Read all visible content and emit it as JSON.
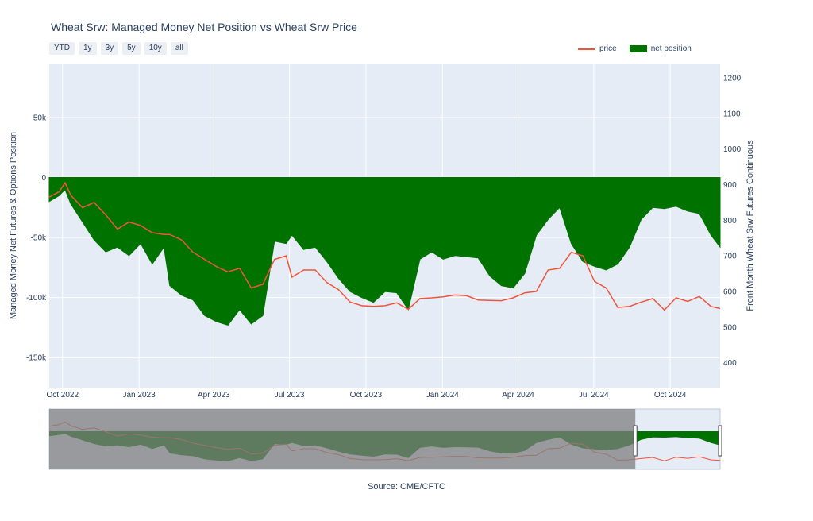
{
  "title": "Wheat Srw: Managed Money Net Position vs Wheat Srw Price",
  "range_buttons": [
    "YTD",
    "1y",
    "3y",
    "5y",
    "10y",
    "all"
  ],
  "legend": {
    "price": "price",
    "net_position": "net position"
  },
  "source": "Source: CME/CFTC",
  "colors": {
    "price": "#ef553b",
    "net_position": "#007200",
    "plot_bg": "#e5ecf6",
    "selector_shade": "#7f7f7f"
  },
  "chart_data": {
    "type": "area",
    "title": "Wheat Srw: Managed Money Net Position vs Wheat Srw Price",
    "x_axis": {
      "tick_labels": [
        "Oct 2022",
        "Jan 2023",
        "Apr 2023",
        "Jul 2023",
        "Oct 2023",
        "Jan 2024",
        "Apr 2024",
        "Jul 2024",
        "Oct 2024"
      ],
      "range": [
        "2022-09-15",
        "2024-11-30"
      ]
    },
    "y_left": {
      "label": "Managed Money Net Futures & Options Position",
      "ticks": [
        50000,
        0,
        -50000,
        -100000,
        -150000
      ],
      "tick_labels": [
        "50k",
        "0",
        "-50k",
        "-100k",
        "-150k"
      ],
      "range": [
        -175000,
        95000
      ]
    },
    "y_right": {
      "label": "Front Month Wheat Srw Futures Continuous",
      "ticks": [
        400,
        500,
        600,
        700,
        800,
        900,
        1000,
        1100,
        1200
      ],
      "tick_labels": [
        "400",
        "500",
        "600",
        "700",
        "800",
        "900",
        "1000",
        "1100",
        "1200"
      ],
      "range": [
        330,
        1240
      ]
    },
    "grid": true,
    "legend_position": "top-right",
    "series": [
      {
        "name": "net position",
        "style": "area",
        "axis": "left",
        "x": [
          "2022-09-15",
          "2022-09-27",
          "2022-10-04",
          "2022-10-11",
          "2022-10-25",
          "2022-11-08",
          "2022-11-22",
          "2022-12-06",
          "2022-12-20",
          "2023-01-03",
          "2023-01-17",
          "2023-01-31",
          "2023-02-07",
          "2023-02-21",
          "2023-03-07",
          "2023-03-21",
          "2023-04-04",
          "2023-04-18",
          "2023-05-02",
          "2023-05-16",
          "2023-05-30",
          "2023-06-13",
          "2023-06-27",
          "2023-07-04",
          "2023-07-18",
          "2023-08-01",
          "2023-08-15",
          "2023-08-29",
          "2023-09-12",
          "2023-09-26",
          "2023-10-10",
          "2023-10-24",
          "2023-11-07",
          "2023-11-21",
          "2023-12-05",
          "2023-12-19",
          "2024-01-02",
          "2024-01-16",
          "2024-01-30",
          "2024-02-13",
          "2024-02-27",
          "2024-03-12",
          "2024-03-26",
          "2024-04-09",
          "2024-04-23",
          "2024-05-07",
          "2024-05-21",
          "2024-06-04",
          "2024-06-18",
          "2024-07-02",
          "2024-07-16",
          "2024-07-30",
          "2024-08-13",
          "2024-08-27",
          "2024-09-10",
          "2024-09-24",
          "2024-10-08",
          "2024-10-22",
          "2024-11-05",
          "2024-11-19",
          "2024-11-30"
        ],
        "values": [
          -20000,
          -15000,
          -10000,
          -22000,
          -37000,
          -52000,
          -62000,
          -58000,
          -65000,
          -55000,
          -72000,
          -58000,
          -90000,
          -98000,
          -102000,
          -115000,
          -120000,
          -123000,
          -110000,
          -122000,
          -115000,
          -53000,
          -55000,
          -48000,
          -60000,
          -58000,
          -70000,
          -84000,
          -95000,
          -100000,
          -104000,
          -95000,
          -96000,
          -110000,
          -68000,
          -62000,
          -68000,
          -65000,
          -66000,
          -67000,
          -82000,
          -90000,
          -92000,
          -80000,
          -48000,
          -35000,
          -25000,
          -55000,
          -70000,
          -74000,
          -77000,
          -72000,
          -58000,
          -35000,
          -25000,
          -26000,
          -24000,
          -28000,
          -30000,
          -48000,
          -58000
        ]
      },
      {
        "name": "price",
        "style": "line",
        "axis": "right",
        "x": [
          "2022-09-15",
          "2022-09-27",
          "2022-10-04",
          "2022-10-11",
          "2022-10-25",
          "2022-11-08",
          "2022-11-22",
          "2022-12-06",
          "2022-12-20",
          "2023-01-03",
          "2023-01-17",
          "2023-01-31",
          "2023-02-07",
          "2023-02-21",
          "2023-03-07",
          "2023-03-21",
          "2023-04-04",
          "2023-04-18",
          "2023-05-02",
          "2023-05-16",
          "2023-05-30",
          "2023-06-13",
          "2023-06-27",
          "2023-07-04",
          "2023-07-18",
          "2023-08-01",
          "2023-08-15",
          "2023-08-29",
          "2023-09-12",
          "2023-09-26",
          "2023-10-10",
          "2023-10-24",
          "2023-11-07",
          "2023-11-21",
          "2023-12-05",
          "2023-12-19",
          "2024-01-02",
          "2024-01-16",
          "2024-01-30",
          "2024-02-13",
          "2024-02-27",
          "2024-03-12",
          "2024-03-26",
          "2024-04-09",
          "2024-04-23",
          "2024-05-07",
          "2024-05-21",
          "2024-06-04",
          "2024-06-18",
          "2024-07-02",
          "2024-07-16",
          "2024-07-30",
          "2024-08-13",
          "2024-08-27",
          "2024-09-10",
          "2024-09-24",
          "2024-10-08",
          "2024-10-22",
          "2024-11-05",
          "2024-11-19",
          "2024-11-30"
        ],
        "values": [
          865,
          880,
          905,
          870,
          835,
          850,
          815,
          775,
          795,
          785,
          765,
          760,
          760,
          745,
          710,
          690,
          670,
          655,
          665,
          610,
          620,
          690,
          700,
          640,
          660,
          660,
          625,
          605,
          570,
          560,
          558,
          560,
          568,
          550,
          580,
          582,
          585,
          590,
          588,
          576,
          575,
          574,
          582,
          596,
          600,
          660,
          665,
          710,
          700,
          628,
          610,
          555,
          558,
          570,
          580,
          548,
          582,
          572,
          586,
          558,
          552
        ]
      }
    ]
  },
  "range_selector": {
    "selected_range": [
      "2024-08-20",
      "2024-11-30"
    ]
  }
}
